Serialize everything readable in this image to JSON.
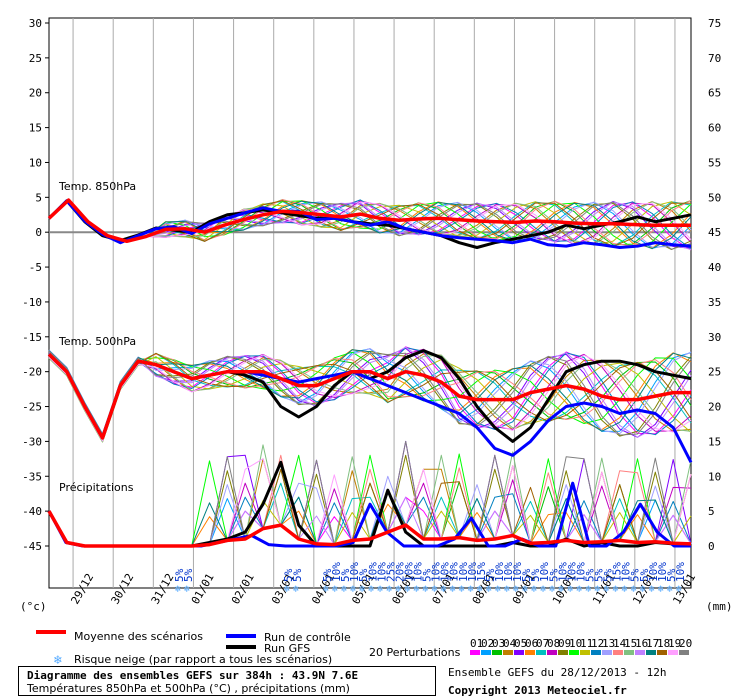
{
  "chart_data": {
    "type": "line",
    "left_axis": {
      "label": "(°c)",
      "ticks": [
        30,
        25,
        20,
        15,
        10,
        5,
        0,
        -5,
        -10,
        -15,
        -20,
        -25,
        -30,
        -35,
        -40,
        -45
      ]
    },
    "right_axis": {
      "label": "(mm)",
      "ticks": [
        75,
        70,
        65,
        60,
        55,
        50,
        45,
        40,
        35,
        30,
        25,
        20,
        15,
        10,
        5,
        0
      ]
    },
    "x_dates": [
      "29/12",
      "30/12",
      "31/12",
      "01/01",
      "02/01",
      "03/01",
      "04/01",
      "05/01",
      "06/01",
      "07/01",
      "08/01",
      "09/01",
      "10/01",
      "11/01",
      "12/01",
      "13/01"
    ],
    "annotations": {
      "t850": "Temp. 850hPa",
      "t500": "Temp. 500hPa",
      "precip": "Précipitations"
    },
    "snow_risk_labels": [
      "5%",
      "5%",
      "5%",
      "5%",
      "5%",
      "10%",
      "5%",
      "10%",
      "5%",
      "10%",
      "10%",
      "25%",
      "20%",
      "10%",
      "10%",
      "5%",
      "10%",
      "10%",
      "10%",
      "10%",
      "10%",
      "15%",
      "5%",
      "10%",
      "10%",
      "10%",
      "5%",
      "5%",
      "10%",
      "5%",
      "10%",
      "10%",
      "10%",
      "5%",
      "5%",
      "5%",
      "15%",
      "10%",
      "5%",
      "5%",
      "10%",
      "10%",
      "5%",
      "10%"
    ],
    "series": [
      {
        "name": "Moyenne des scénarios",
        "color": "#ff0000",
        "t850": [
          2,
          4.6,
          1.5,
          -0.5,
          -1.3,
          -0.6,
          0.4,
          0.5,
          0,
          1,
          1.8,
          2.5,
          3,
          2.8,
          2.5,
          2.2,
          2.6,
          2,
          1.7,
          1.9,
          2,
          1.8,
          1.6,
          1.5,
          1.4,
          1.6,
          1.5,
          1.3,
          1.2,
          1.2,
          1.1,
          1,
          1,
          1
        ],
        "t500": [
          -17.5,
          -20,
          -25,
          -29.5,
          -22,
          -18.5,
          -19,
          -20,
          -21,
          -20.5,
          -20,
          -20,
          -20,
          -21,
          -22,
          -22,
          -21,
          -20,
          -20,
          -21,
          -20,
          -20.5,
          -21.5,
          -23.5,
          -24,
          -24,
          -24,
          -23,
          -22.5,
          -22,
          -22.5,
          -23.5,
          -24,
          -24,
          -23.5,
          -23,
          -23
        ],
        "precip": [
          5,
          0.5,
          0,
          0,
          0,
          0,
          0,
          0,
          0,
          0.2,
          0.8,
          1,
          2.5,
          3,
          1,
          0.3,
          0.2,
          0.8,
          1,
          2,
          3,
          1,
          1,
          1.2,
          0.8,
          1,
          1.5,
          0.4,
          0.5,
          0.8,
          0.5,
          0.6,
          0.8,
          0.5,
          0.6,
          0.4,
          0.3
        ]
      },
      {
        "name": "Run de contrôle",
        "color": "#0000ff",
        "t850": [
          2,
          4.5,
          1.6,
          -0.3,
          -1.5,
          -0.5,
          0.5,
          0.8,
          -0.2,
          1.2,
          2,
          2.8,
          3.5,
          3,
          3,
          1.8,
          2,
          1.5,
          1,
          1.5,
          0.5,
          0,
          -0.5,
          -0.8,
          -1,
          -1.2,
          -1.5,
          -1,
          -1.8,
          -2,
          -1.5,
          -1.8,
          -2.2,
          -2,
          -1.5,
          -1.8,
          -2
        ],
        "t500": [
          -17.5,
          -20,
          -25,
          -29.5,
          -22,
          -18.5,
          -19,
          -20,
          -21,
          -20.5,
          -20,
          -20,
          -20.5,
          -21,
          -21.5,
          -21,
          -20.5,
          -20,
          -21,
          -22,
          -23,
          -24,
          -25,
          -26,
          -28,
          -31,
          -32,
          -30,
          -27,
          -25,
          -24.5,
          -25,
          -26,
          -25.5,
          -26,
          -28,
          -33
        ],
        "precip": [
          5,
          0.5,
          0,
          0,
          0,
          0,
          0,
          0,
          0,
          0,
          0.5,
          1,
          1.5,
          0.2,
          0,
          0,
          0,
          0,
          0.5,
          6,
          2,
          0,
          0,
          0,
          1,
          4,
          0,
          0,
          1,
          0,
          0,
          9,
          0,
          0,
          2,
          6,
          2,
          0,
          0
        ]
      },
      {
        "name": "Run GFS",
        "color": "#000000",
        "t850": [
          2,
          4.5,
          1.5,
          -0.5,
          -1.2,
          -0.4,
          0.6,
          0.3,
          0,
          1.5,
          2.5,
          2.8,
          3.2,
          2.8,
          2.4,
          2,
          2,
          1.5,
          1.2,
          1,
          0.5,
          0,
          -0.5,
          -1.5,
          -2.2,
          -1.5,
          -1,
          -0.5,
          0,
          1,
          0.5,
          1,
          1.5,
          2.2,
          1.5,
          2,
          2.5
        ],
        "t500": [
          -17.5,
          -20,
          -25,
          -29.5,
          -22,
          -18.5,
          -19,
          -20,
          -21,
          -20.5,
          -20,
          -20.5,
          -21.5,
          -25,
          -26.5,
          -25,
          -22,
          -20,
          -21,
          -20,
          -18,
          -17,
          -18,
          -21,
          -25,
          -28,
          -30,
          -28,
          -24,
          -20,
          -19,
          -18.5,
          -18.5,
          -19,
          -20,
          -20.5,
          -21
        ],
        "precip": [
          5,
          0.5,
          0,
          0,
          0,
          0,
          0,
          0,
          0,
          0.5,
          1,
          2,
          6,
          12,
          3,
          0,
          0,
          0,
          0,
          8,
          2,
          0,
          0,
          0,
          0,
          0,
          0.5,
          0,
          0,
          1,
          0,
          0.5,
          0,
          0,
          0.5,
          0.3,
          0.2
        ]
      }
    ],
    "legend": {
      "mean": "Moyenne des scénarios",
      "control": "Run de contrôle",
      "gfs": "Run GFS",
      "snow": "Risque neige (par rapport a tous les scénarios)",
      "perturbations": "20 Perturbations",
      "perturbation_ids": [
        "01",
        "02",
        "03",
        "04",
        "05",
        "06",
        "07",
        "08",
        "09",
        "10",
        "11",
        "12",
        "13",
        "14",
        "15",
        "16",
        "17",
        "18",
        "19",
        "20"
      ],
      "perturbation_colors": [
        "#ff00ff",
        "#00a0ff",
        "#00c000",
        "#c08000",
        "#8000ff",
        "#ff8000",
        "#00c0c0",
        "#c000c0",
        "#808000",
        "#00ff00",
        "#c0c000",
        "#0080c0",
        "#a0a0ff",
        "#ff8080",
        "#80c080",
        "#c080ff",
        "#008080",
        "#a06000",
        "#ffa0ff",
        "#808080"
      ]
    }
  },
  "footer": {
    "title": "Diagramme des ensembles GEFS sur 384h : 43.9N 7.6E",
    "subtitle": "Températures 850hPa et 500hPa (°C) , précipitations (mm)",
    "run": "Ensemble GEFS du 28/12/2013 - 12h",
    "copyright": "Copyright 2013 Meteociel.fr"
  }
}
